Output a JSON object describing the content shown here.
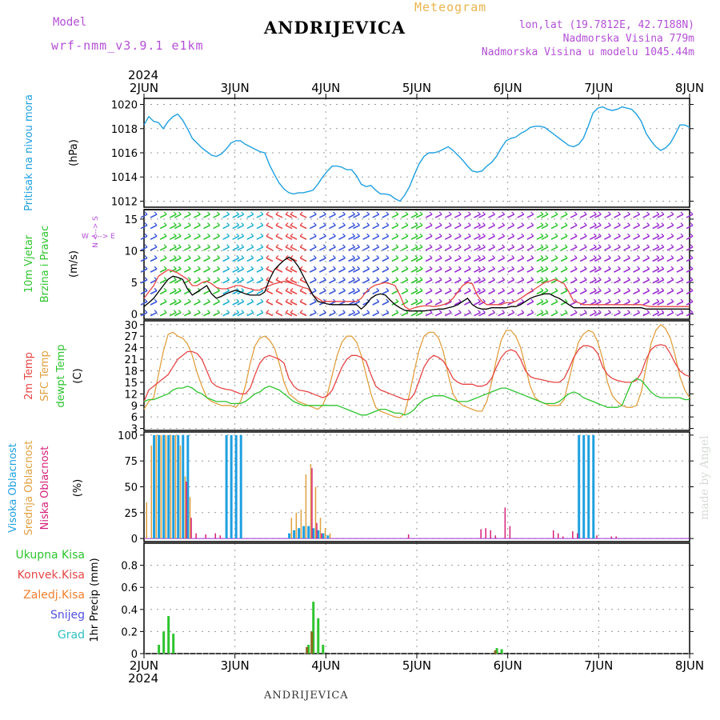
{
  "header": {
    "model_label": "Model",
    "model_name": "wrf-nmm_v3.9.1 e1km",
    "station": "ANDRIJEVICA",
    "meteogram_label": "Meteogram",
    "lonlat": "lon,lat (19.7812E, 42.7188N)",
    "altitude": "Nadmorska Visina 779m",
    "model_altitude": "Nadmorska Visina u modelu 1045.44m"
  },
  "footer": {
    "station": "ANDRIJEVICA",
    "credit": "made by Angel"
  },
  "colors": {
    "pressure": "#1fa0e0",
    "temp_2m": "#e64646",
    "sfc_temp": "#e0a040",
    "dewpoint": "#2ec42e",
    "high_cloud": "#1fa0e0",
    "mid_cloud": "#e0a040",
    "low_cloud": "#d6207a",
    "total_precip": "#2ec42e",
    "conv_precip": "#e64646",
    "frozen_precip": "#f08030",
    "snow": "#5050e0",
    "hail": "#30c0c0",
    "wind_label": "#2ec42e",
    "compass": "#b44fd6"
  },
  "chart_data": [
    {
      "id": "pressure",
      "type": "line",
      "ylabel_rotated": "Pritisak na nivou mora",
      "unit": "(hPa)",
      "ylim": [
        1011.5,
        1020.5
      ],
      "yticks": [
        1012,
        1014,
        1016,
        1018,
        1020
      ],
      "year": "2024",
      "x_labels": [
        "2JUN",
        "3JUN",
        "4JUN",
        "5JUN",
        "6JUN",
        "7JUN",
        "8JUN"
      ],
      "grid": true,
      "series": [
        {
          "values": [
            1018.3,
            1019.0,
            1018.6,
            1018.5,
            1018.0,
            1018.6,
            1019.0,
            1019.2,
            1018.7,
            1018.0,
            1017.2,
            1016.8,
            1016.4,
            1016.1,
            1015.8,
            1015.7,
            1015.9,
            1016.3,
            1016.8,
            1017.0,
            1017.0,
            1016.7,
            1016.5,
            1016.3,
            1016.1,
            1016.0,
            1015.0,
            1014.2,
            1013.5,
            1013.0,
            1012.7,
            1012.6,
            1012.7,
            1012.7,
            1012.8,
            1012.9,
            1013.4,
            1014.0,
            1014.5,
            1014.9,
            1014.9,
            1014.8,
            1014.6,
            1014.6,
            1014.1,
            1013.4,
            1013.2,
            1013.3,
            1012.9,
            1012.6,
            1012.6,
            1012.5,
            1012.2,
            1012.0,
            1012.5,
            1013.2,
            1014.2,
            1015.1,
            1015.7,
            1016.0,
            1016.0,
            1016.1,
            1016.3,
            1016.5,
            1016.2,
            1015.8,
            1015.4,
            1014.9,
            1014.5,
            1014.4,
            1014.5,
            1014.9,
            1015.2,
            1015.7,
            1016.4,
            1017.0,
            1017.2,
            1017.3,
            1017.6,
            1017.8,
            1018.1,
            1018.2,
            1018.2,
            1018.1,
            1017.8,
            1017.5,
            1017.2,
            1016.9,
            1016.6,
            1016.5,
            1016.7,
            1017.2,
            1018.2,
            1019.3,
            1019.7,
            1019.8,
            1019.6,
            1019.5,
            1019.6,
            1019.8,
            1019.7,
            1019.6,
            1019.2,
            1018.6,
            1017.6,
            1017.0,
            1016.5,
            1016.2,
            1016.4,
            1016.8,
            1017.5,
            1018.3,
            1018.3,
            1018.1
          ]
        }
      ]
    },
    {
      "id": "wind",
      "type": "line",
      "ylabel_rotated_1": "10m Vjetar",
      "ylabel_rotated_2": "Brzina i Pravac",
      "unit": "(m/s)",
      "compass_ns": "N <--> S",
      "compass_ew": "W <--> E",
      "ylim": [
        -0.8,
        16.5
      ],
      "yticks": [
        0,
        5,
        10,
        15
      ],
      "grid": true,
      "series": [
        {
          "name": "speed",
          "values": [
            1.2,
            1.8,
            2.5,
            3.5,
            4.5,
            5.5,
            6.0,
            5.8,
            5.5,
            4.0,
            3.0,
            3.5,
            4.0,
            4.5,
            3.2,
            2.5,
            2.8,
            3.2,
            3.5,
            3.8,
            3.5,
            3.2,
            3.0,
            3.0,
            3.0,
            3.5,
            5.5,
            7.0,
            7.8,
            8.5,
            9.0,
            8.5,
            7.5,
            6.0,
            4.5,
            3.0,
            2.0,
            1.8,
            1.6,
            1.5,
            1.5,
            1.5,
            1.5,
            1.5,
            1.5,
            0.8,
            1.5,
            2.5,
            3.0,
            3.2,
            3.0,
            2.2,
            1.5,
            1.0,
            0.6,
            0.5,
            0.5,
            0.5,
            0.5,
            0.6,
            0.7,
            0.8,
            0.8,
            1.0,
            1.2,
            1.5,
            2.0,
            2.5,
            1.5,
            1.0,
            0.8,
            0.8,
            1.0,
            1.0,
            1.0,
            1.0,
            1.2,
            1.2,
            1.5,
            2.0,
            2.5,
            2.8,
            3.0,
            3.2,
            3.2,
            2.8,
            2.5,
            2.0,
            1.5,
            1.0,
            1.0,
            1.0,
            1.0,
            1.0,
            1.0,
            1.0,
            1.0,
            1.0,
            1.0,
            1.0,
            1.0,
            1.0,
            1.0,
            1.0,
            0.8,
            0.8,
            0.8,
            0.8,
            0.8,
            0.8,
            0.8,
            0.8,
            0.8,
            0.8
          ]
        },
        {
          "name": "gust",
          "values": [
            2.5,
            3.5,
            4.5,
            6.0,
            6.5,
            7.0,
            6.8,
            6.5,
            6.0,
            5.5,
            4.5,
            4.5,
            5.0,
            5.2,
            4.8,
            4.2,
            4.0,
            4.0,
            4.2,
            4.5,
            4.5,
            4.2,
            4.0,
            3.8,
            3.8,
            4.2,
            4.5,
            4.8,
            5.0,
            5.2,
            5.0,
            4.8,
            4.5,
            4.2,
            4.0,
            3.0,
            2.5,
            2.0,
            2.0,
            2.0,
            2.0,
            2.0,
            2.0,
            2.0,
            2.0,
            2.5,
            3.5,
            4.2,
            4.6,
            4.8,
            5.0,
            4.8,
            4.5,
            3.0,
            1.2,
            0.7,
            1.0,
            1.2,
            1.3,
            1.3,
            1.2,
            1.3,
            1.5,
            1.8,
            2.5,
            3.5,
            4.5,
            5.0,
            4.8,
            3.0,
            2.0,
            1.5,
            1.5,
            1.5,
            1.5,
            1.8,
            1.8,
            2.0,
            2.5,
            3.0,
            3.5,
            4.0,
            4.5,
            5.0,
            5.2,
            5.5,
            5.2,
            4.8,
            3.5,
            2.0,
            1.8,
            1.5,
            1.5,
            1.5,
            1.5,
            1.5,
            1.5,
            1.5,
            1.5,
            1.5,
            1.5,
            1.5,
            1.5,
            1.5,
            1.3,
            1.2,
            1.2,
            1.2,
            1.2,
            1.2,
            1.2,
            1.2,
            1.2,
            1.2
          ]
        }
      ]
    },
    {
      "id": "temperature",
      "type": "line",
      "ylabel_rotated_1": "2m Temp",
      "ylabel_rotated_2": "SFC Temp",
      "ylabel_rotated_3": "dewpt Temp",
      "unit": "(C)",
      "ylim": [
        2.5,
        31
      ],
      "yticks": [
        3,
        6,
        9,
        12,
        15,
        18,
        21,
        24,
        27,
        30
      ],
      "grid": true,
      "series": [
        {
          "name": "2m",
          "values": [
            10.0,
            13.0,
            14.0,
            15.0,
            16.0,
            17.0,
            19.0,
            21.0,
            22.0,
            23.0,
            23.0,
            22.5,
            21.0,
            18.0,
            15.0,
            14.0,
            13.5,
            13.2,
            13.0,
            12.5,
            12.0,
            12.0,
            13.5,
            17.0,
            20.0,
            21.5,
            22.0,
            21.5,
            21.0,
            20.0,
            16.0,
            14.0,
            13.0,
            12.8,
            12.5,
            12.0,
            11.5,
            11.0,
            11.5,
            13.0,
            16.0,
            19.0,
            21.0,
            22.0,
            22.0,
            21.5,
            20.5,
            17.0,
            14.0,
            13.0,
            12.5,
            12.0,
            11.5,
            11.0,
            10.5,
            10.5,
            12.0,
            15.5,
            19.0,
            21.0,
            22.0,
            21.5,
            20.5,
            18.5,
            16.0,
            15.0,
            14.5,
            14.5,
            14.5,
            14.0,
            14.0,
            14.5,
            16.0,
            19.0,
            21.5,
            23.0,
            23.5,
            23.0,
            21.0,
            18.0,
            16.5,
            16.0,
            15.8,
            15.5,
            15.2,
            15.0,
            15.0,
            16.0,
            18.5,
            21.5,
            23.5,
            24.5,
            24.5,
            24.0,
            22.5,
            19.0,
            17.0,
            16.0,
            15.5,
            15.2,
            15.0,
            15.0,
            15.5,
            17.5,
            21.0,
            23.5,
            24.5,
            24.8,
            24.5,
            22.5,
            20.0,
            18.0,
            17.0,
            16.5
          ]
        },
        {
          "name": "sfc",
          "values": [
            8.0,
            10.0,
            11.0,
            17.0,
            23.0,
            27.5,
            28.0,
            27.0,
            26.5,
            25.0,
            22.0,
            17.5,
            14.0,
            11.0,
            10.0,
            9.5,
            9.0,
            9.0,
            9.0,
            8.5,
            10.0,
            14.0,
            20.0,
            24.5,
            26.5,
            27.0,
            26.0,
            24.0,
            20.0,
            15.0,
            12.0,
            11.0,
            10.0,
            9.5,
            9.0,
            8.5,
            8.0,
            9.0,
            12.0,
            17.0,
            22.0,
            25.5,
            27.0,
            27.0,
            25.5,
            22.0,
            17.0,
            12.0,
            8.5,
            7.5,
            7.0,
            6.5,
            6.0,
            5.8,
            7.0,
            12.0,
            18.0,
            23.5,
            27.0,
            28.0,
            28.0,
            26.5,
            23.0,
            17.0,
            12.0,
            10.0,
            9.0,
            8.5,
            8.0,
            7.5,
            7.5,
            10.0,
            15.0,
            21.0,
            26.0,
            28.5,
            28.5,
            27.0,
            24.0,
            19.0,
            14.0,
            11.0,
            10.0,
            9.5,
            9.0,
            9.0,
            9.0,
            10.5,
            15.5,
            21.0,
            25.5,
            27.5,
            28.5,
            28.0,
            25.5,
            21.0,
            15.0,
            11.5,
            10.0,
            9.0,
            8.5,
            8.5,
            9.0,
            12.5,
            19.0,
            25.0,
            28.5,
            30.0,
            29.0,
            26.5,
            22.0,
            16.5,
            13.0,
            11.0
          ]
        },
        {
          "name": "dewpoint",
          "values": [
            10.0,
            10.5,
            10.5,
            11.0,
            11.5,
            12.0,
            13.0,
            13.5,
            13.5,
            14.0,
            13.5,
            12.5,
            12.0,
            11.0,
            10.5,
            10.0,
            10.0,
            10.0,
            9.5,
            9.5,
            9.5,
            10.0,
            11.0,
            12.0,
            12.5,
            13.5,
            14.0,
            13.5,
            13.0,
            12.0,
            11.0,
            10.0,
            9.5,
            9.0,
            9.0,
            9.0,
            9.0,
            9.0,
            9.0,
            9.0,
            9.0,
            8.5,
            8.0,
            7.5,
            7.0,
            6.5,
            6.5,
            7.0,
            7.5,
            8.0,
            8.0,
            7.5,
            7.0,
            7.0,
            6.5,
            7.0,
            8.0,
            9.5,
            10.5,
            11.0,
            11.5,
            11.5,
            11.5,
            11.0,
            10.5,
            10.0,
            10.0,
            10.0,
            10.5,
            11.0,
            11.5,
            12.0,
            12.5,
            13.0,
            13.5,
            13.5,
            13.0,
            12.5,
            12.0,
            11.5,
            11.0,
            10.5,
            10.0,
            9.5,
            9.5,
            9.5,
            10.0,
            11.0,
            12.0,
            12.5,
            12.0,
            11.0,
            10.5,
            10.0,
            9.5,
            9.0,
            8.5,
            8.5,
            8.5,
            9.0,
            12.0,
            15.0,
            16.0,
            15.5,
            14.0,
            12.5,
            11.5,
            11.0,
            11.0,
            11.0,
            11.0,
            11.0,
            10.5,
            10.5
          ]
        }
      ]
    },
    {
      "id": "cloud",
      "type": "bar",
      "ylabel_rotated_1": "Visoka Oblacnost",
      "ylabel_rotated_2": "Srednja Oblacnost",
      "ylabel_rotated_3": "Niska Oblacnost",
      "unit": "(%)",
      "ylim": [
        -3,
        103
      ],
      "yticks": [
        0,
        25,
        50,
        75,
        100
      ],
      "grid": true,
      "high": [
        [
          2,
          100
        ],
        [
          3,
          100
        ],
        [
          4,
          100
        ],
        [
          5,
          100
        ],
        [
          6,
          100
        ],
        [
          7,
          100
        ],
        [
          8,
          100
        ],
        [
          9,
          100
        ],
        [
          17,
          100
        ],
        [
          18,
          100
        ],
        [
          19,
          100
        ],
        [
          20,
          100
        ],
        [
          30,
          5
        ],
        [
          31,
          8
        ],
        [
          32,
          10
        ],
        [
          33,
          12
        ],
        [
          34,
          12
        ],
        [
          35,
          10
        ],
        [
          36,
          8
        ],
        [
          37,
          5
        ],
        [
          38,
          3
        ],
        [
          90,
          100
        ],
        [
          91,
          100
        ],
        [
          92,
          100
        ],
        [
          93,
          100
        ]
      ],
      "mid": [
        [
          0,
          35
        ],
        [
          1,
          90
        ],
        [
          2,
          100
        ],
        [
          3,
          100
        ],
        [
          4,
          100
        ],
        [
          5,
          100
        ],
        [
          6,
          100
        ],
        [
          7,
          90
        ],
        [
          8,
          60
        ],
        [
          9,
          40
        ],
        [
          30,
          20
        ],
        [
          31,
          25
        ],
        [
          32,
          28
        ],
        [
          33,
          62
        ],
        [
          34,
          72
        ],
        [
          35,
          50
        ],
        [
          36,
          20
        ],
        [
          37,
          10
        ],
        [
          38,
          5
        ]
      ],
      "low": [
        [
          8,
          55
        ],
        [
          9,
          20
        ],
        [
          10,
          5
        ],
        [
          12,
          4
        ],
        [
          14,
          5
        ],
        [
          15,
          3
        ],
        [
          34,
          68
        ],
        [
          35,
          15
        ],
        [
          36,
          5
        ],
        [
          54,
          4
        ],
        [
          69,
          9
        ],
        [
          70,
          10
        ],
        [
          71,
          8
        ],
        [
          72,
          3
        ],
        [
          74,
          30
        ],
        [
          75,
          12
        ],
        [
          84,
          8
        ],
        [
          85,
          5
        ],
        [
          86,
          2
        ],
        [
          88,
          7
        ],
        [
          89,
          5
        ],
        [
          93,
          3
        ],
        [
          96,
          2
        ],
        [
          97,
          2
        ]
      ]
    },
    {
      "id": "precip",
      "type": "bar",
      "legend": [
        "Ukupna Kisa",
        "Konvek.Kisa",
        "Zaledj.Kisa",
        "Snijeg",
        "Grad"
      ],
      "ylabel": "1hr Precip (mm)",
      "ylim": [
        0,
        1.0
      ],
      "yticks": [
        "0",
        "0.2",
        "0.4",
        "0.6",
        "0.8"
      ],
      "ytick_values": [
        0,
        0.2,
        0.4,
        0.6,
        0.8
      ],
      "grid": true,
      "total": [
        [
          3,
          0.08
        ],
        [
          4,
          0.2
        ],
        [
          5,
          0.34
        ],
        [
          6,
          0.18
        ],
        [
          34,
          0.08
        ],
        [
          35,
          0.47
        ],
        [
          36,
          0.32
        ],
        [
          37,
          0.08
        ],
        [
          73,
          0.05
        ],
        [
          74,
          0.04
        ]
      ],
      "conv": [
        [
          34,
          0.06
        ],
        [
          35,
          0.2
        ],
        [
          73,
          0.03
        ]
      ]
    }
  ]
}
